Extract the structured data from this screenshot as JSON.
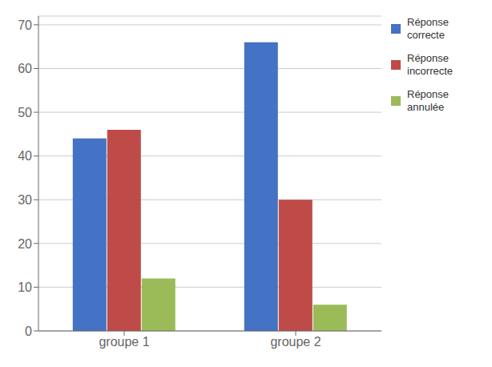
{
  "chart_data": {
    "type": "bar",
    "categories": [
      "groupe 1",
      "groupe 2"
    ],
    "series": [
      {
        "name": "Réponse\ncorrecte",
        "color": "#4472C4",
        "values": [
          44,
          66
        ]
      },
      {
        "name": "Réponse\nincorrecte",
        "color": "#BE4B48",
        "values": [
          46,
          30
        ]
      },
      {
        "name": "Réponse\nannulée",
        "color": "#9BBB59",
        "values": [
          12,
          6
        ]
      }
    ],
    "ylim": [
      0,
      72
    ],
    "yticks": [
      0,
      10,
      20,
      30,
      40,
      50,
      60,
      70
    ],
    "grid": true,
    "legend": "upper right"
  }
}
